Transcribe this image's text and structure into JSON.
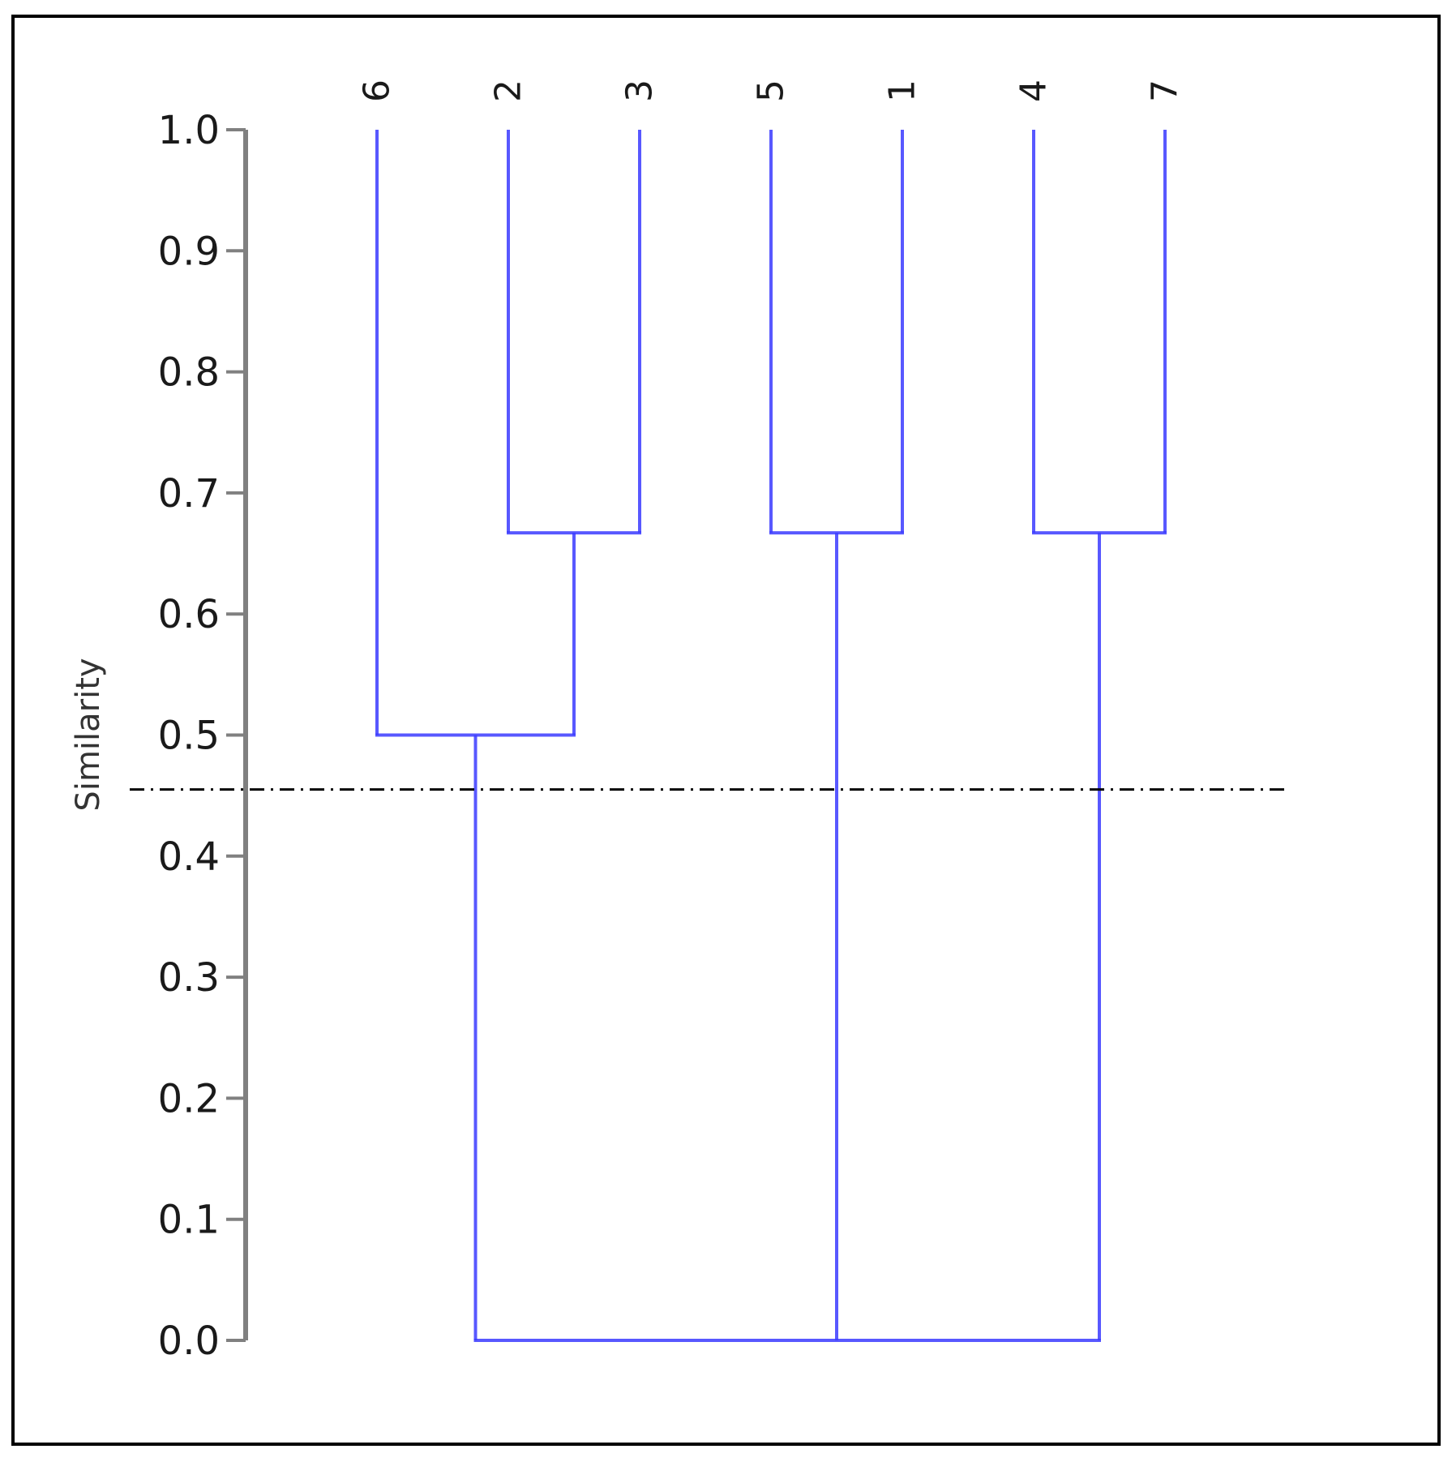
{
  "chart_data": {
    "type": "dendrogram",
    "ylabel": "Similarity",
    "ylim": [
      0.0,
      1.0
    ],
    "yticks": [
      "0.0",
      "0.1",
      "0.2",
      "0.3",
      "0.4",
      "0.5",
      "0.6",
      "0.7",
      "0.8",
      "0.9",
      "1.0"
    ],
    "leaves": [
      "6",
      "2",
      "3",
      "5",
      "1",
      "4",
      "7"
    ],
    "merges": [
      {
        "children": [
          "2",
          "3"
        ],
        "similarity": 0.667
      },
      {
        "children": [
          "5",
          "1"
        ],
        "similarity": 0.667
      },
      {
        "children": [
          "4",
          "7"
        ],
        "similarity": 0.667
      },
      {
        "children": [
          "6",
          "2+3"
        ],
        "similarity": 0.5
      },
      {
        "children": [
          "6+2+3",
          "5+1",
          "4+7"
        ],
        "similarity": 0.0
      }
    ],
    "cut_line": {
      "similarity": 0.455,
      "style": "dash-dot"
    },
    "grid": false,
    "colors": {
      "branch": "#3b3bff",
      "axis": "#808080",
      "cut_line": "#000000"
    }
  }
}
